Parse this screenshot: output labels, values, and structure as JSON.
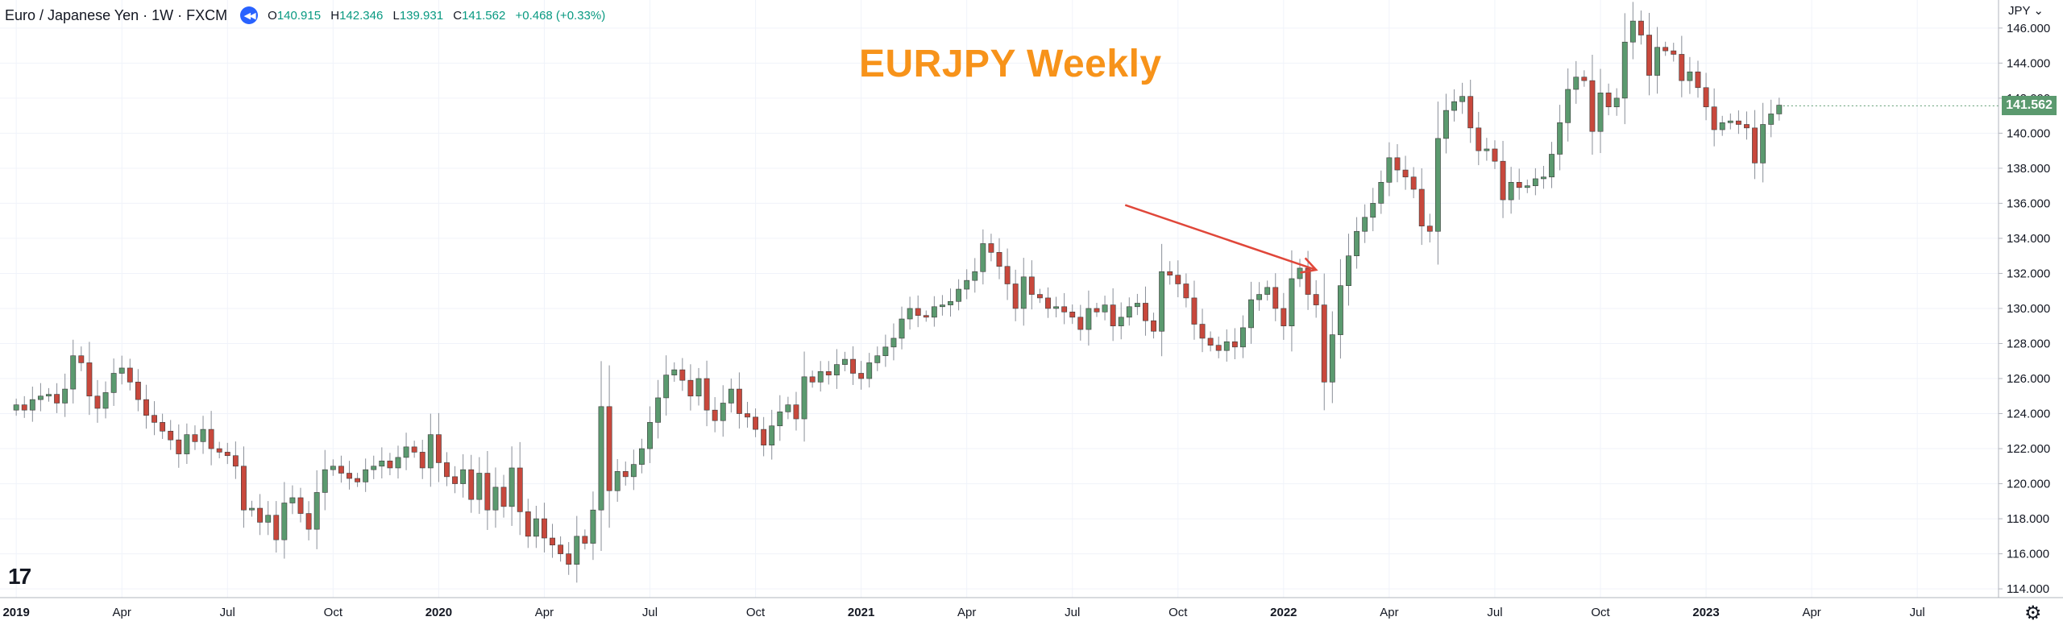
{
  "legend": {
    "symbol": "Euro / Japanese Yen · 1W · FXCM",
    "open_label": "O",
    "open": "140.915",
    "high_label": "H",
    "high": "142.346",
    "low_label": "L",
    "low": "139.931",
    "close_label": "C",
    "close": "141.562",
    "change": "+0.468 (+0.33%)"
  },
  "currency_menu": "JPY",
  "last_price": "141.562",
  "colors": {
    "up": "#5b9a6f",
    "down": "#c8483c",
    "title": "#f7931a",
    "arrow": "#e0473a"
  },
  "chart_data": {
    "type": "candlestick",
    "title": "EURJPY Weekly",
    "y_axis": {
      "min": 113.5,
      "max": 147.6,
      "ticks": [
        "114.000",
        "116.000",
        "118.000",
        "120.000",
        "122.000",
        "124.000",
        "126.000",
        "128.000",
        "130.000",
        "132.000",
        "134.000",
        "136.000",
        "138.000",
        "140.000",
        "142.000",
        "144.000",
        "146.000"
      ]
    },
    "x_axis": {
      "start_index": -2,
      "end_index": 244,
      "labels": [
        {
          "i": 0,
          "label": "2019"
        },
        {
          "i": 13,
          "label": "Apr"
        },
        {
          "i": 26,
          "label": "Jul"
        },
        {
          "i": 39,
          "label": "Oct"
        },
        {
          "i": 52,
          "label": "2020"
        },
        {
          "i": 65,
          "label": "Apr"
        },
        {
          "i": 78,
          "label": "Jul"
        },
        {
          "i": 91,
          "label": "Oct"
        },
        {
          "i": 104,
          "label": "2021"
        },
        {
          "i": 117,
          "label": "Apr"
        },
        {
          "i": 130,
          "label": "Jul"
        },
        {
          "i": 143,
          "label": "Oct"
        },
        {
          "i": 156,
          "label": "2022"
        },
        {
          "i": 169,
          "label": "Apr"
        },
        {
          "i": 182,
          "label": "Jul"
        },
        {
          "i": 195,
          "label": "Oct"
        },
        {
          "i": 208,
          "label": "2023"
        },
        {
          "i": 221,
          "label": "Apr"
        },
        {
          "i": 234,
          "label": "Jul"
        }
      ]
    },
    "closes": [
      124.5,
      124.2,
      124.8,
      125.0,
      125.1,
      124.6,
      125.4,
      127.3,
      126.9,
      125.0,
      124.3,
      125.2,
      126.3,
      126.6,
      125.8,
      124.8,
      123.9,
      123.5,
      123.0,
      122.5,
      121.7,
      122.8,
      122.4,
      123.1,
      122.0,
      121.8,
      121.6,
      121.0,
      118.5,
      118.6,
      117.8,
      118.2,
      116.8,
      118.9,
      119.2,
      118.3,
      117.4,
      119.5,
      120.8,
      121.0,
      120.6,
      120.3,
      120.1,
      120.8,
      121.0,
      121.3,
      120.9,
      121.5,
      122.1,
      121.8,
      120.9,
      122.8,
      121.2,
      120.4,
      120.0,
      120.8,
      119.1,
      120.6,
      118.5,
      119.8,
      118.7,
      120.9,
      118.4,
      117.0,
      118.0,
      116.9,
      116.5,
      116.0,
      115.4,
      117.0,
      116.6,
      118.5,
      124.4,
      119.6,
      120.7,
      120.4,
      121.1,
      122.0,
      123.5,
      124.9,
      126.2,
      126.5,
      125.9,
      125.0,
      126.0,
      124.2,
      123.6,
      124.6,
      125.4,
      124.0,
      123.8,
      123.1,
      122.2,
      123.3,
      124.1,
      124.5,
      123.7,
      126.1,
      125.8,
      126.4,
      126.2,
      126.8,
      127.1,
      126.3,
      126.0,
      126.9,
      127.3,
      127.8,
      128.3,
      129.4,
      130.0,
      129.6,
      129.5,
      130.1,
      130.2,
      130.4,
      131.1,
      131.6,
      132.1,
      133.7,
      133.2,
      132.4,
      131.4,
      130.0,
      131.8,
      130.8,
      130.6,
      130.0,
      130.1,
      129.8,
      129.5,
      128.8,
      130.0,
      129.8,
      130.2,
      129.0,
      129.5,
      130.1,
      130.3,
      129.3,
      128.7,
      132.1,
      131.9,
      131.4,
      130.6,
      129.1,
      128.3,
      127.9,
      127.6,
      128.1,
      127.8,
      128.9,
      130.5,
      130.8,
      131.2,
      130.0,
      129.0,
      131.7,
      132.3,
      130.8,
      130.2,
      125.8,
      128.5,
      131.3,
      133.0,
      134.4,
      135.2,
      136.0,
      137.2,
      138.6,
      137.9,
      137.5,
      136.8,
      134.7,
      134.4,
      139.7,
      141.3,
      141.8,
      142.1,
      140.3,
      139.0,
      139.1,
      138.4,
      136.2,
      137.2,
      136.9,
      137.0,
      137.4,
      137.5,
      138.8,
      140.6,
      142.5,
      143.2,
      143.0,
      140.1,
      142.3,
      141.5,
      142.0,
      145.2,
      146.4,
      145.6,
      143.3,
      144.9,
      144.7,
      144.5,
      143.0,
      143.5,
      142.6,
      141.5,
      140.2,
      140.6,
      140.7,
      140.5,
      140.3,
      138.3,
      140.5,
      141.1,
      141.6
    ],
    "arrow": {
      "from": {
        "x": 136.5,
        "y": 135.9
      },
      "to": {
        "x": 160,
        "y": 132.2
      }
    }
  },
  "branding": {
    "logo": "17",
    "settings_icon": "gear-icon"
  }
}
